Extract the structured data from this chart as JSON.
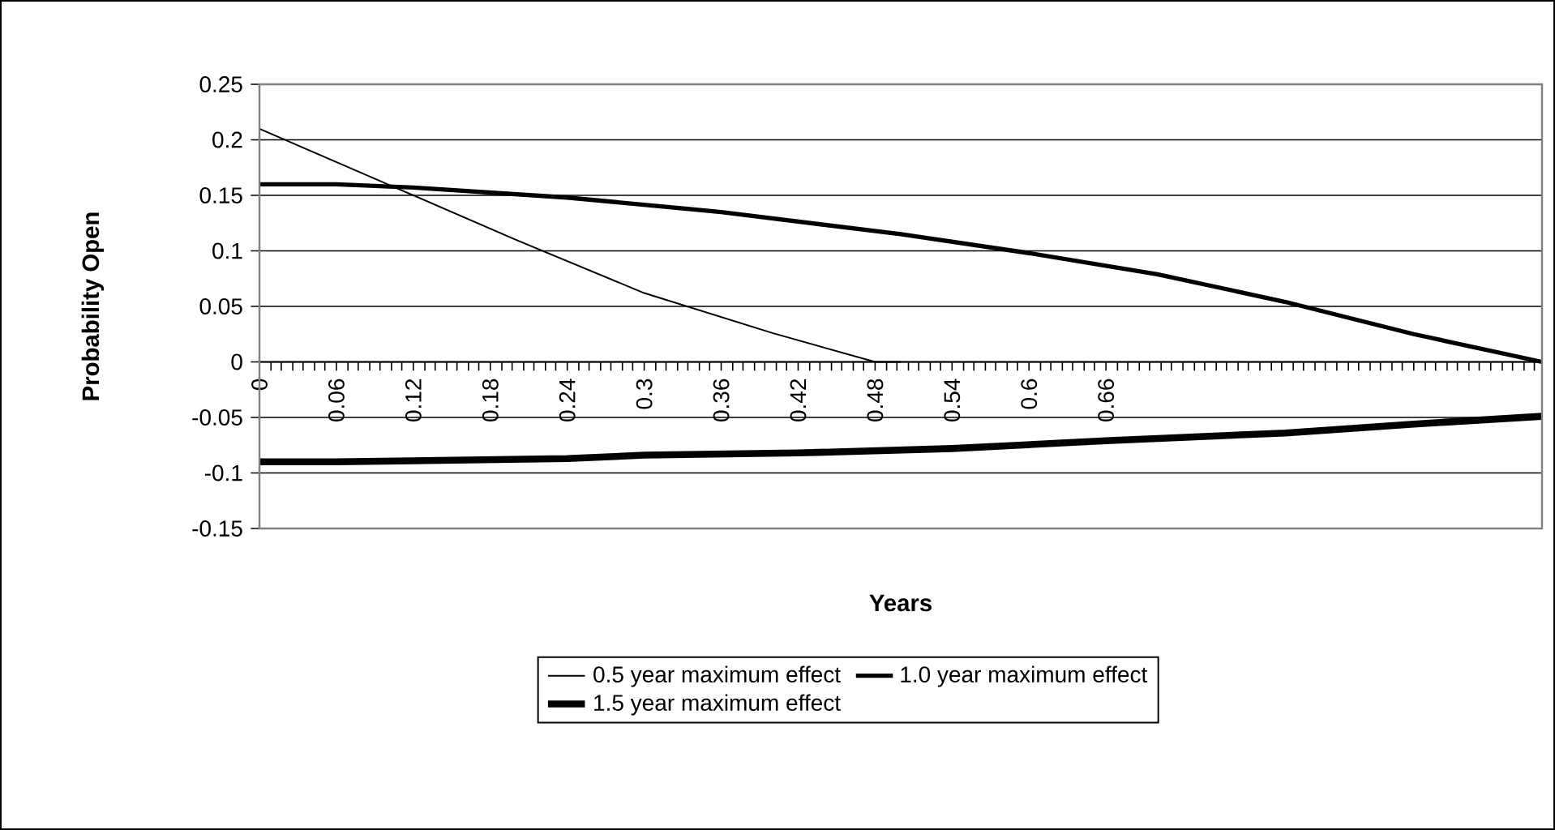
{
  "chart_data": {
    "type": "line",
    "xlabel": "Years",
    "ylabel": "Probability Open",
    "xlim": [
      0,
      1.0
    ],
    "ylim": [
      -0.15,
      0.25
    ],
    "yticks": [
      -0.15,
      -0.1,
      -0.05,
      0,
      0.05,
      0.1,
      0.15,
      0.2,
      0.25
    ],
    "xticks": [
      0,
      {
        "value": 0.009,
        "label": null
      },
      {
        "value": 0.017,
        "label": null
      },
      {
        "value": 0.026,
        "label": null
      },
      {
        "value": 0.034,
        "label": null
      },
      {
        "value": 0.043,
        "label": null
      },
      {
        "value": 0.051,
        "label": null
      },
      0.06,
      {
        "value": 0.069,
        "label": null
      },
      {
        "value": 0.077,
        "label": null
      },
      {
        "value": 0.086,
        "label": null
      },
      {
        "value": 0.094,
        "label": null
      },
      {
        "value": 0.103,
        "label": null
      },
      {
        "value": 0.111,
        "label": null
      },
      0.12,
      {
        "value": 0.129,
        "label": null
      },
      {
        "value": 0.137,
        "label": null
      },
      {
        "value": 0.146,
        "label": null
      },
      {
        "value": 0.154,
        "label": null
      },
      {
        "value": 0.163,
        "label": null
      },
      {
        "value": 0.171,
        "label": null
      },
      0.18,
      {
        "value": 0.189,
        "label": null
      },
      {
        "value": 0.197,
        "label": null
      },
      {
        "value": 0.206,
        "label": null
      },
      {
        "value": 0.214,
        "label": null
      },
      {
        "value": 0.223,
        "label": null
      },
      {
        "value": 0.231,
        "label": null
      },
      0.24,
      {
        "value": 0.249,
        "label": null
      },
      {
        "value": 0.257,
        "label": null
      },
      {
        "value": 0.266,
        "label": null
      },
      {
        "value": 0.274,
        "label": null
      },
      {
        "value": 0.283,
        "label": null
      },
      {
        "value": 0.291,
        "label": null
      },
      0.3,
      {
        "value": 0.309,
        "label": null
      },
      {
        "value": 0.317,
        "label": null
      },
      {
        "value": 0.326,
        "label": null
      },
      {
        "value": 0.334,
        "label": null
      },
      {
        "value": 0.343,
        "label": null
      },
      {
        "value": 0.351,
        "label": null
      },
      0.36,
      {
        "value": 0.369,
        "label": null
      },
      {
        "value": 0.377,
        "label": null
      },
      {
        "value": 0.386,
        "label": null
      },
      {
        "value": 0.394,
        "label": null
      },
      {
        "value": 0.403,
        "label": null
      },
      {
        "value": 0.411,
        "label": null
      },
      0.42,
      {
        "value": 0.429,
        "label": null
      },
      {
        "value": 0.437,
        "label": null
      },
      {
        "value": 0.446,
        "label": null
      },
      {
        "value": 0.454,
        "label": null
      },
      {
        "value": 0.463,
        "label": null
      },
      {
        "value": 0.471,
        "label": null
      },
      0.48,
      {
        "value": 0.489,
        "label": null
      },
      {
        "value": 0.497,
        "label": null
      },
      {
        "value": 0.506,
        "label": null
      },
      {
        "value": 0.514,
        "label": null
      },
      {
        "value": 0.523,
        "label": null
      },
      {
        "value": 0.531,
        "label": null
      },
      0.54,
      {
        "value": 0.549,
        "label": null
      },
      {
        "value": 0.557,
        "label": null
      },
      {
        "value": 0.566,
        "label": null
      },
      {
        "value": 0.574,
        "label": null
      },
      {
        "value": 0.583,
        "label": null
      },
      {
        "value": 0.591,
        "label": null
      },
      0.6,
      {
        "value": 0.609,
        "label": null
      },
      {
        "value": 0.617,
        "label": null
      },
      {
        "value": 0.626,
        "label": null
      },
      {
        "value": 0.634,
        "label": null
      },
      {
        "value": 0.643,
        "label": null
      },
      {
        "value": 0.651,
        "label": null
      },
      0.66,
      {
        "value": 0.669,
        "label": null
      },
      {
        "value": 0.677,
        "label": null
      },
      {
        "value": 0.686,
        "label": null
      },
      {
        "value": 0.694,
        "label": null
      },
      {
        "value": 0.703,
        "label": null
      },
      {
        "value": 0.711,
        "label": null
      },
      {
        "value": 0.72,
        "label": null
      },
      {
        "value": 0.729,
        "label": null
      },
      {
        "value": 0.737,
        "label": null
      },
      {
        "value": 0.746,
        "label": null
      },
      {
        "value": 0.754,
        "label": null
      },
      {
        "value": 0.763,
        "label": null
      },
      {
        "value": 0.771,
        "label": null
      },
      {
        "value": 0.78,
        "label": null
      },
      {
        "value": 0.789,
        "label": null
      },
      {
        "value": 0.797,
        "label": null
      },
      {
        "value": 0.806,
        "label": null
      },
      {
        "value": 0.814,
        "label": null
      },
      {
        "value": 0.823,
        "label": null
      },
      {
        "value": 0.831,
        "label": null
      },
      {
        "value": 0.84,
        "label": null
      },
      {
        "value": 0.849,
        "label": null
      },
      {
        "value": 0.857,
        "label": null
      },
      {
        "value": 0.866,
        "label": null
      },
      {
        "value": 0.874,
        "label": null
      },
      {
        "value": 0.883,
        "label": null
      },
      {
        "value": 0.891,
        "label": null
      },
      {
        "value": 0.9,
        "label": null
      },
      {
        "value": 0.909,
        "label": null
      },
      {
        "value": 0.917,
        "label": null
      },
      {
        "value": 0.926,
        "label": null
      },
      {
        "value": 0.934,
        "label": null
      },
      {
        "value": 0.943,
        "label": null
      },
      {
        "value": 0.951,
        "label": null
      },
      {
        "value": 0.96,
        "label": null
      },
      {
        "value": 0.969,
        "label": null
      },
      {
        "value": 0.977,
        "label": null
      },
      {
        "value": 0.986,
        "label": null
      },
      {
        "value": 0.994,
        "label": null
      }
    ],
    "grid": "y",
    "legend": "bottom",
    "marker": "none",
    "line_style": "solid",
    "series": [
      {
        "name": "0.5 year maximum effect",
        "color": "#000000",
        "x": [
          0,
          0.1,
          0.2,
          0.3,
          0.4,
          0.48,
          0.5
        ],
        "values": [
          0.21,
          0.16,
          0.11,
          0.062,
          0.026,
          0.0,
          0.0
        ]
      },
      {
        "name": "1.0 year maximum effect",
        "color": "#000000",
        "x": [
          0,
          0.06,
          0.12,
          0.24,
          0.36,
          0.5,
          0.6,
          0.7,
          0.8,
          0.9,
          1.0
        ],
        "values": [
          0.16,
          0.16,
          0.157,
          0.148,
          0.135,
          0.115,
          0.098,
          0.079,
          0.054,
          0.025,
          0.0
        ]
      },
      {
        "name": "1.5 year maximum effect",
        "color": "#000000",
        "x": [
          0,
          0.06,
          0.24,
          0.3,
          0.42,
          0.54,
          0.66,
          0.8,
          0.9,
          1.0
        ],
        "values": [
          -0.09,
          -0.09,
          -0.087,
          -0.084,
          -0.082,
          -0.078,
          -0.071,
          -0.064,
          -0.056,
          -0.049
        ]
      }
    ]
  }
}
